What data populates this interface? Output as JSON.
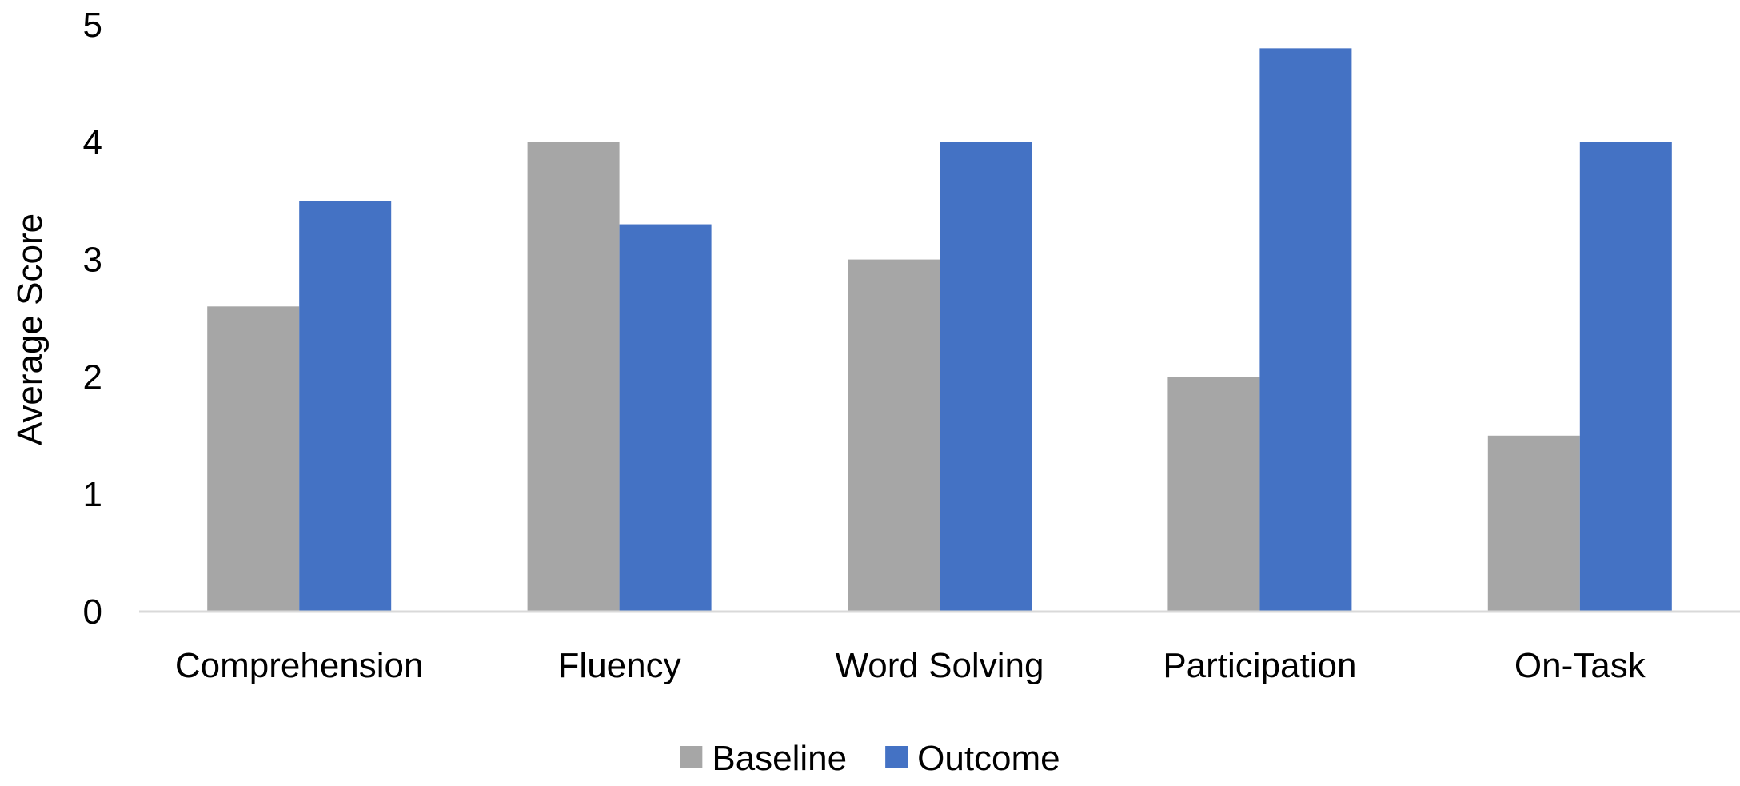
{
  "chart_data": {
    "type": "bar",
    "title": "",
    "xlabel": "",
    "ylabel": "Average Score",
    "ylim": [
      0,
      5
    ],
    "yticks": [
      0,
      1,
      2,
      3,
      4,
      5
    ],
    "grid": false,
    "legend_position": "bottom",
    "categories": [
      "Comprehension",
      "Fluency",
      "Word Solving",
      "Participation",
      "On-Task"
    ],
    "series": [
      {
        "name": "Baseline",
        "color": "#a6a6a6",
        "values": [
          2.6,
          4.0,
          3.0,
          2.0,
          1.5
        ]
      },
      {
        "name": "Outcome",
        "color": "#4472c4",
        "values": [
          3.5,
          3.3,
          4.0,
          4.8,
          4.0
        ]
      }
    ],
    "axis_color": "#d9d9d9"
  }
}
